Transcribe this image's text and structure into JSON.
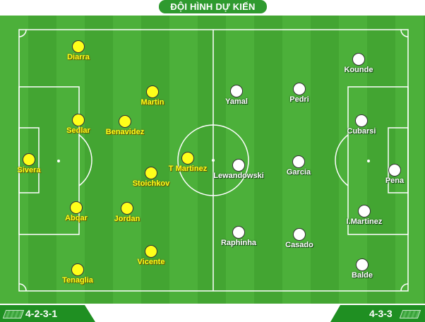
{
  "title": "ĐỘI HÌNH DỰ KIẾN",
  "teams": {
    "left": {
      "formation": "4-2-3-1",
      "color": "#ffff1a",
      "players": [
        {
          "name": "Diarra"
        },
        {
          "name": "Martin"
        },
        {
          "name": "Sedlar"
        },
        {
          "name": "Benavidez"
        },
        {
          "name": "Sivera"
        },
        {
          "name": "T Martinez"
        },
        {
          "name": "Stoichkov"
        },
        {
          "name": "Abqar"
        },
        {
          "name": "Jordan"
        },
        {
          "name": "Vicente"
        },
        {
          "name": "Tenaglia"
        }
      ]
    },
    "right": {
      "formation": "4-3-3",
      "color": "#ffffff",
      "players": [
        {
          "name": "Kounde"
        },
        {
          "name": "Yamal"
        },
        {
          "name": "Pedri"
        },
        {
          "name": "Cubarsi"
        },
        {
          "name": "Lewandowski"
        },
        {
          "name": "Garcia"
        },
        {
          "name": "Pena"
        },
        {
          "name": "I.Martinez"
        },
        {
          "name": "Raphinha"
        },
        {
          "name": "Casado"
        },
        {
          "name": "Balde"
        }
      ]
    }
  }
}
